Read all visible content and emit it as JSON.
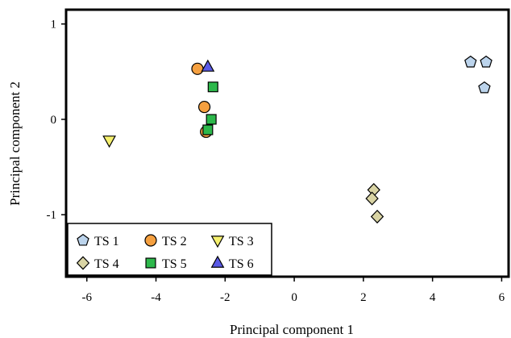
{
  "chart_data": {
    "type": "scatter",
    "xlabel": "Principal component 1",
    "ylabel": "Principal component 2",
    "xlim": [
      -6.6,
      6.2
    ],
    "ylim": [
      -1.65,
      1.15
    ],
    "x_ticks": [
      -6,
      -4,
      -2,
      0,
      2,
      4,
      6
    ],
    "y_ticks": [
      1,
      0,
      -1
    ],
    "x_tick_labels": [
      "-6",
      "-4",
      "-2",
      "0",
      "2",
      "4",
      "6"
    ],
    "y_tick_labels": [
      "1",
      "0",
      "-1"
    ],
    "grid": false,
    "legend_position": "bottom-left",
    "series": [
      {
        "name": "TS 1",
        "marker": "pentagon",
        "color": "#bcd4ec",
        "points": [
          [
            5.1,
            0.6
          ],
          [
            5.55,
            0.6
          ],
          [
            5.5,
            0.33
          ]
        ]
      },
      {
        "name": "TS 2",
        "marker": "circle",
        "color": "#f5a040",
        "points": [
          [
            -2.8,
            0.53
          ],
          [
            -2.6,
            0.13
          ],
          [
            -2.55,
            -0.13
          ]
        ]
      },
      {
        "name": "TS 3",
        "marker": "triangle-down",
        "color": "#f5f06e",
        "points": [
          [
            -5.35,
            -0.22
          ]
        ]
      },
      {
        "name": "TS 4",
        "marker": "diamond",
        "color": "#d9d4a4",
        "points": [
          [
            2.3,
            -0.74
          ],
          [
            2.25,
            -0.83
          ],
          [
            2.4,
            -1.02
          ]
        ]
      },
      {
        "name": "TS 5",
        "marker": "square",
        "color": "#2db84b",
        "points": [
          [
            -2.35,
            0.34
          ],
          [
            -2.4,
            0.0
          ],
          [
            -2.5,
            -0.11
          ]
        ]
      },
      {
        "name": "TS 6",
        "marker": "triangle-up",
        "color": "#5a5ae6",
        "points": [
          [
            -2.5,
            0.55
          ]
        ]
      }
    ]
  }
}
